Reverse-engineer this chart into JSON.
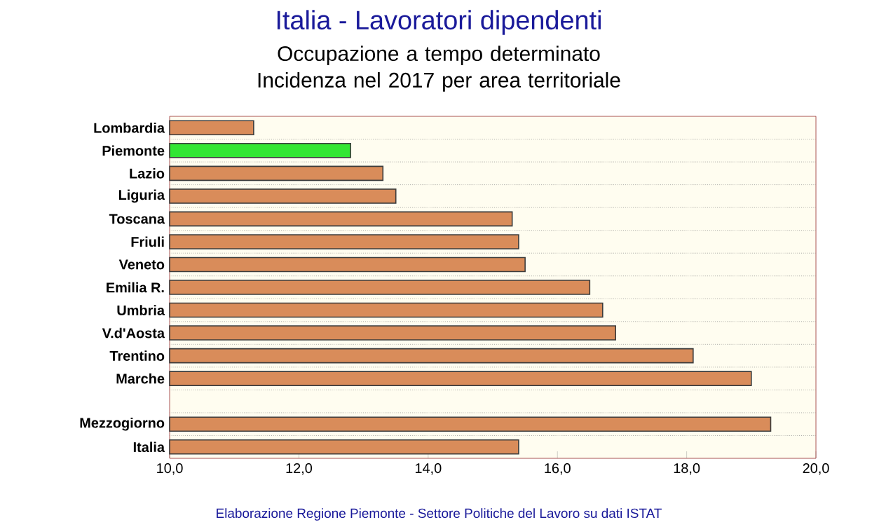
{
  "chart_data": {
    "type": "bar",
    "orientation": "horizontal",
    "title": "Italia - Lavoratori dipendenti",
    "subtitle": "Occupazione a tempo determinato\nIncidenza nel 2017 per area territoriale",
    "categories": [
      "Lombardia",
      "Piemonte",
      "Lazio",
      "Liguria",
      "Toscana",
      "Friuli",
      "Veneto",
      "Emilia R.",
      "Umbria",
      "V.d'Aosta",
      "Trentino",
      "Marche",
      null,
      "Mezzogiorno",
      "Italia"
    ],
    "values": [
      11.3,
      12.8,
      13.3,
      13.5,
      15.3,
      15.4,
      15.5,
      16.5,
      16.7,
      16.9,
      18.1,
      19.0,
      null,
      19.3,
      15.4
    ],
    "colors": [
      "#d98c5a",
      "#33e633",
      "#d98c5a",
      "#d98c5a",
      "#d98c5a",
      "#d98c5a",
      "#d98c5a",
      "#d98c5a",
      "#d98c5a",
      "#d98c5a",
      "#d98c5a",
      "#d98c5a",
      "#d98c5a",
      "#d98c5a",
      "#d98c5a"
    ],
    "xlim": [
      10,
      20
    ],
    "xticks": [
      {
        "value": 10,
        "label": "10,0"
      },
      {
        "value": 12,
        "label": "12,0"
      },
      {
        "value": 14,
        "label": "14,0"
      },
      {
        "value": 16,
        "label": "16,0"
      },
      {
        "value": 18,
        "label": "18,0"
      },
      {
        "value": 20,
        "label": "20,0"
      }
    ],
    "grid": "y",
    "annotations": [
      "Elaborazione Regione Piemonte - Settore Politiche del Lavoro su dati ISTAT"
    ]
  }
}
